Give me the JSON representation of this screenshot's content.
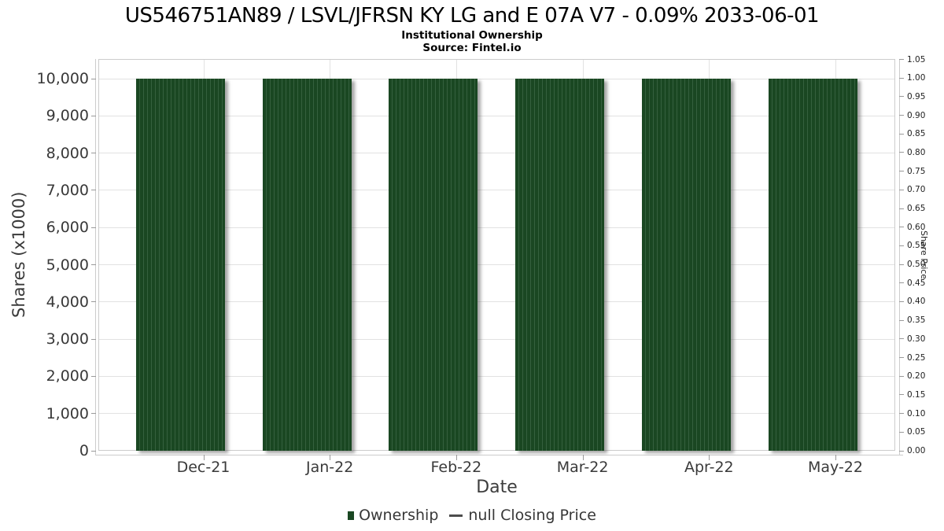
{
  "page": {
    "title": "US546751AN89 / LSVL/JFRSN KY LG and E 07A V7 - 0.09% 2033-06-01",
    "subtitle": "Institutional Ownership",
    "source": "Source: Fintel.io"
  },
  "chart_data": {
    "type": "bar",
    "categories": [
      "Dec-21",
      "Jan-22",
      "Feb-22",
      "Mar-22",
      "Apr-22",
      "May-22"
    ],
    "series": [
      {
        "name": "Ownership",
        "type": "column",
        "color": "#1a4722",
        "values": [
          10000,
          10000,
          10000,
          10000,
          10000,
          10000
        ]
      },
      {
        "name": "null Closing Price",
        "type": "line",
        "color": "#4d4d4d",
        "values": []
      }
    ],
    "title": "Institutional Ownership",
    "xlabel": "Date",
    "ylabel_left": "Shares (x1000)",
    "ylabel_right": "Share Price",
    "y_left_axis": {
      "min": 0,
      "max": 10000,
      "step": 1000,
      "tick_labels": [
        "0",
        "1,000",
        "2,000",
        "3,000",
        "4,000",
        "5,000",
        "6,000",
        "7,000",
        "8,000",
        "9,000",
        "10,000"
      ]
    },
    "y_right_axis": {
      "min": 0,
      "max": 1.05,
      "step": 0.05,
      "tick_labels": [
        "0.00",
        "0.05",
        "0.10",
        "0.15",
        "0.20",
        "0.25",
        "0.30",
        "0.35",
        "0.40",
        "0.45",
        "0.50",
        "0.55",
        "0.60",
        "0.65",
        "0.70",
        "0.75",
        "0.80",
        "0.85",
        "0.90",
        "0.95",
        "1.00",
        "1.05"
      ]
    },
    "grid": true,
    "legend_position": "bottom"
  },
  "colors": {
    "bar": "#1a4722",
    "bar_stripe": "#35603e",
    "grid": "#e2e2e2",
    "frame": "#cccccc",
    "tick": "#9a9a9a",
    "text": "#383838",
    "line_marker": "#4d4d4d"
  }
}
